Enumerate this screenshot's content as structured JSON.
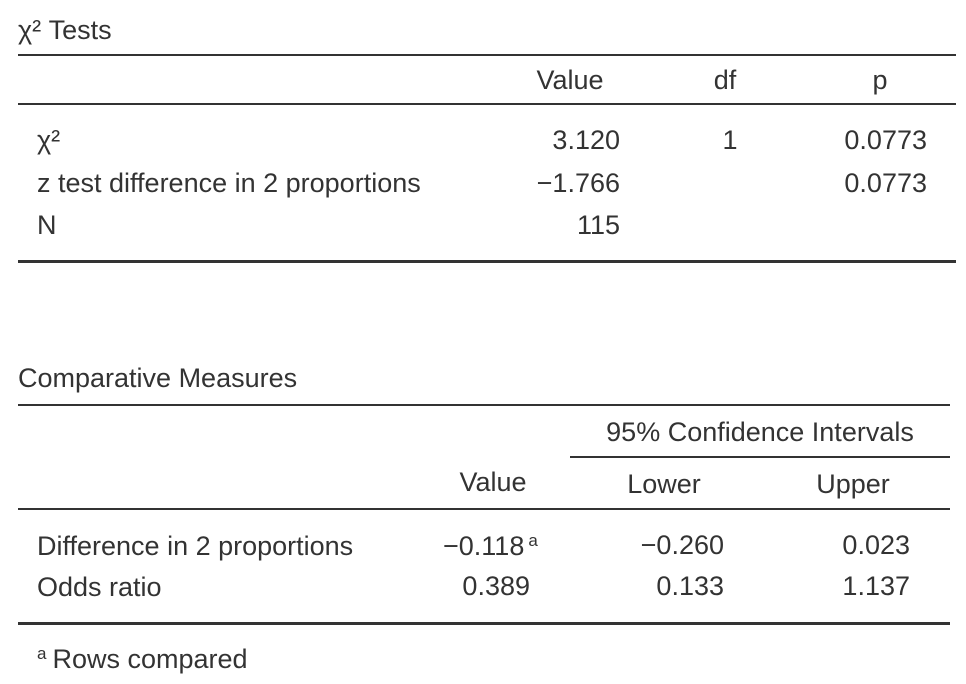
{
  "chi_table": {
    "title": "χ² Tests",
    "headers": {
      "value": "Value",
      "df": "df",
      "p": "p"
    },
    "rows": [
      {
        "label": "χ²",
        "value": "3.120",
        "df": "1",
        "p": "0.0773"
      },
      {
        "label": "z test difference in 2 proportions",
        "value": "−1.766",
        "df": "",
        "p": "0.0773"
      },
      {
        "label": "N",
        "value": "115",
        "df": "",
        "p": ""
      }
    ]
  },
  "comp_table": {
    "title": "Comparative Measures",
    "ci_header": "95% Confidence Intervals",
    "headers": {
      "value": "Value",
      "lower": "Lower",
      "upper": "Upper"
    },
    "rows": [
      {
        "label": "Difference in 2 proportions",
        "value": "−0.118",
        "footnote_mark": "a",
        "lower": "−0.260",
        "upper": "0.023"
      },
      {
        "label": "Odds ratio",
        "value": "0.389",
        "footnote_mark": "",
        "lower": "0.133",
        "upper": "1.137"
      }
    ],
    "footnote": {
      "mark": "a",
      "text": "Rows compared"
    }
  }
}
